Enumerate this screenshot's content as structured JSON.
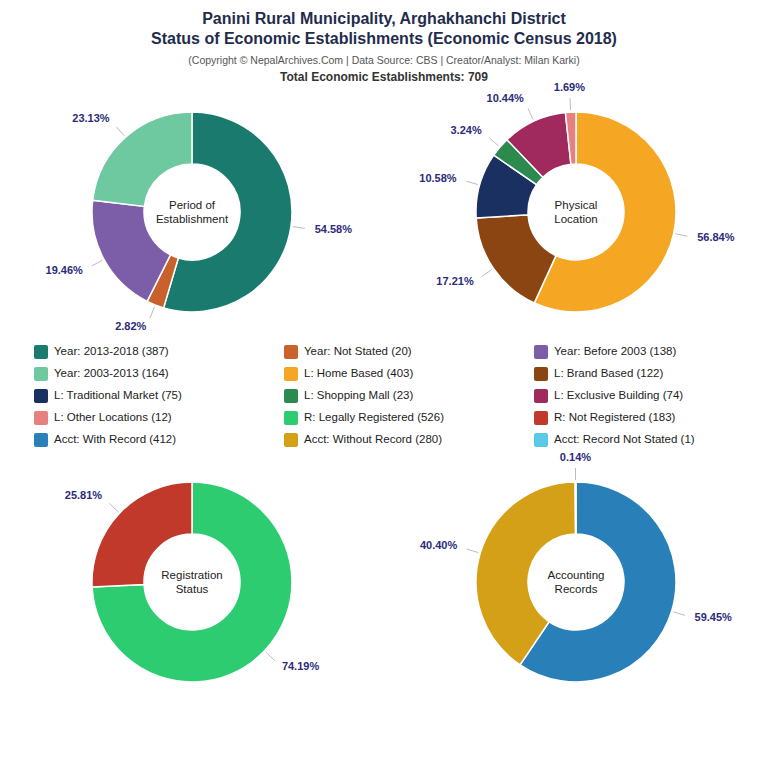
{
  "title": "Panini Rural Municipality, Arghakhanchi District\nStatus of Economic Establishments (Economic Census 2018)",
  "subtitle": "(Copyright © NepalArchives.Com | Data Source: CBS | Creator/Analyst: Milan Karki)",
  "annotations": [
    "Total Economic Establishments: 709"
  ],
  "chart_data": [
    {
      "type": "pie",
      "title": "Period of\nEstablishment",
      "categories": [
        "Year: 2013-2018 (387)",
        "Year: Not Stated (20)",
        "Year: Before 2003 (138)",
        "Year: 2003-2013 (164)"
      ],
      "values": [
        54.58,
        2.82,
        19.46,
        23.13
      ],
      "value_labels": [
        "54.58%",
        "2.82%",
        "19.46%",
        "23.13%"
      ],
      "colors": [
        "#1a7a6e",
        "#c8612b",
        "#7b5ea7",
        "#6ec9a0"
      ],
      "data_labels": true,
      "legend": "center"
    },
    {
      "type": "pie",
      "title": "Physical\nLocation",
      "categories": [
        "L: Home Based (403)",
        "L: Brand Based (122)",
        "L: Traditional Market (75)",
        "L: Shopping Mall (23)",
        "L: Exclusive Building (74)",
        "L: Other Locations (12)"
      ],
      "values": [
        56.84,
        17.21,
        10.58,
        3.24,
        10.44,
        1.69
      ],
      "value_labels": [
        "56.84%",
        "17.21%",
        "10.58%",
        "3.24%",
        "10.44%",
        "1.69%"
      ],
      "colors": [
        "#f5a623",
        "#8B4513",
        "#1a3060",
        "#2d8a4e",
        "#a0295e",
        "#e88080"
      ],
      "data_labels": true,
      "legend": "center"
    },
    {
      "type": "pie",
      "title": "Registration\nStatus",
      "categories": [
        "R: Legally Registered (526)",
        "R: Not Registered (183)"
      ],
      "values": [
        74.19,
        25.81
      ],
      "value_labels": [
        "74.19%",
        "25.81%"
      ],
      "colors": [
        "#2ecc71",
        "#c0392b"
      ],
      "data_labels": true,
      "legend": "center"
    },
    {
      "type": "pie",
      "title": "Accounting\nRecords",
      "categories": [
        "Acct: With Record (412)",
        "Acct: Without Record (280)",
        "Acct: Record Not Stated (1)"
      ],
      "values": [
        59.45,
        40.4,
        0.14
      ],
      "value_labels": [
        "59.45%",
        "40.40%",
        "0.14%"
      ],
      "colors": [
        "#2980b9",
        "#d4a017",
        "#5bc8e8"
      ],
      "data_labels": true,
      "legend": "center"
    }
  ]
}
